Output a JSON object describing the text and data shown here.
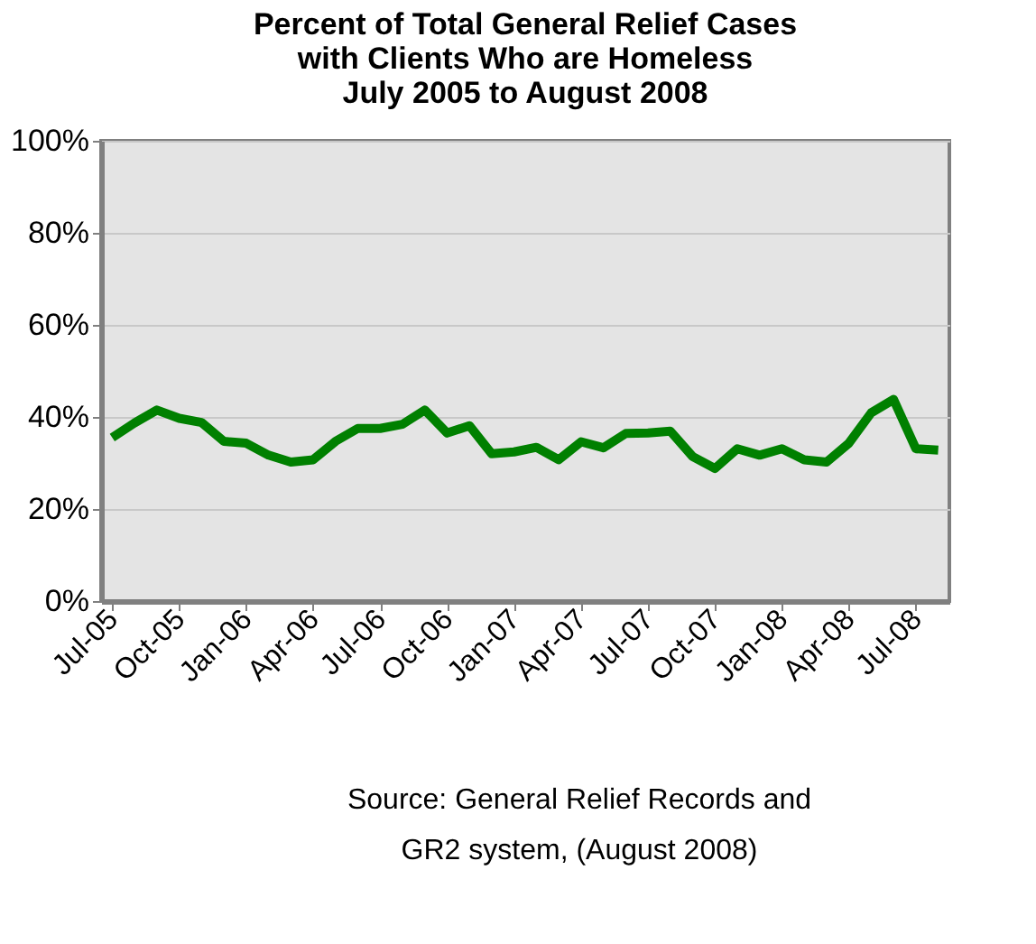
{
  "chart_data": {
    "type": "line",
    "title": "Percent of Total General Relief Cases\nwith Clients Who are Homeless\nJuly 2005 to August 2008",
    "categories": [
      "Jul-05",
      null,
      null,
      "Oct-05",
      null,
      null,
      "Jan-06",
      null,
      null,
      "Apr-06",
      null,
      null,
      "Jul-06",
      null,
      null,
      "Oct-06",
      null,
      null,
      "Jan-07",
      null,
      null,
      "Apr-07",
      null,
      null,
      "Jul-07",
      null,
      null,
      "Oct-07",
      null,
      null,
      "Jan-08",
      null,
      null,
      "Apr-08",
      null,
      null,
      "Jul-08",
      null
    ],
    "series": [
      {
        "color": "#008000",
        "values": [
          35.5,
          38.7,
          41.5,
          39.7,
          38.8,
          34.7,
          34.3,
          31.7,
          30.2,
          30.7,
          34.7,
          37.5,
          37.5,
          38.4,
          41.5,
          36.5,
          38.1,
          32.0,
          32.4,
          33.4,
          30.7,
          34.6,
          33.3,
          36.4,
          36.5,
          36.9,
          31.4,
          28.8,
          33.1,
          31.7,
          33.1,
          30.7,
          30.2,
          34.3,
          40.9,
          43.8,
          33.1,
          32.8
        ]
      }
    ],
    "ylim": [
      0,
      100
    ],
    "yticks": [
      {
        "value": 0,
        "label": "0%"
      },
      {
        "value": 20,
        "label": "20%"
      },
      {
        "value": 40,
        "label": "40%"
      },
      {
        "value": 60,
        "label": "60%"
      },
      {
        "value": 80,
        "label": "80%"
      },
      {
        "value": 100,
        "label": "100%"
      }
    ],
    "grid": "y",
    "marker": "none",
    "line_style": "solid",
    "annotations": [
      "Source: General Relief Records and",
      "GR2 system, (August 2008)"
    ]
  }
}
